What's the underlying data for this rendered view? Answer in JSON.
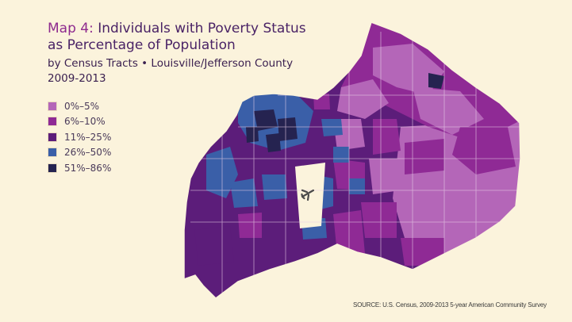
{
  "title": {
    "map_number": "Map 4",
    "separator": ":",
    "line1_rest": " Individuals with Poverty Status",
    "line2": "as Percentage of Population",
    "subtitle1": "by Census Tracts • Louisville/Jefferson County",
    "subtitle2": "2009-2013"
  },
  "legend": [
    {
      "label": "0%–5%",
      "color": "#b466b8"
    },
    {
      "label": "6%–10%",
      "color": "#8f2a95"
    },
    {
      "label": "11%–25%",
      "color": "#5c1d7a"
    },
    {
      "label": "26%–50%",
      "color": "#3a5fa8"
    },
    {
      "label": "51%–86%",
      "color": "#252350"
    }
  ],
  "map": {
    "airport_icon": "airplane-icon"
  },
  "source": "SOURCE: U.S. Census, 2009-2013 5-year American Community Survey"
}
